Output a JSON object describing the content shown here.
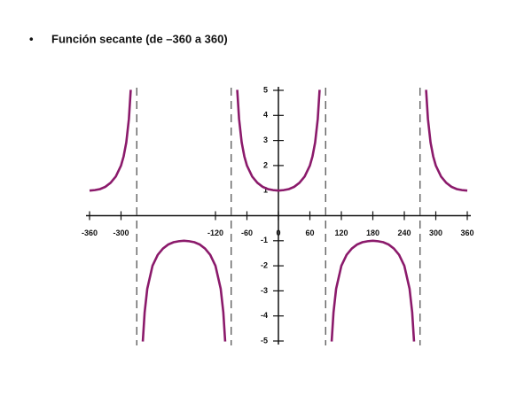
{
  "chart_data": {
    "type": "line",
    "title": "Función secante (de –360 a 360)",
    "color": "#8b1a6b",
    "x": [
      -360,
      -350,
      -340,
      -330,
      -320,
      -310,
      -300,
      -295,
      -290,
      -285,
      -281.5,
      -270,
      -258.5,
      -255,
      -250,
      -240,
      -230,
      -220,
      -210,
      -200,
      -190,
      -180,
      -170,
      -160,
      -150,
      -140,
      -130,
      -120,
      -110,
      -105,
      -101.5,
      -90,
      -78.5,
      -75,
      -70,
      -65,
      -60,
      -50,
      -40,
      -30,
      -20,
      -10,
      0,
      10,
      20,
      30,
      40,
      50,
      60,
      65,
      70,
      75,
      78.5,
      90,
      101.5,
      105,
      110,
      120,
      130,
      140,
      150,
      160,
      170,
      180,
      190,
      200,
      210,
      220,
      230,
      240,
      250,
      255,
      258.5,
      270,
      281.5,
      285,
      290,
      295,
      300,
      310,
      320,
      330,
      340,
      350,
      360
    ],
    "values": [
      1,
      1.02,
      1.06,
      1.15,
      1.31,
      1.56,
      2,
      2.37,
      2.92,
      3.86,
      5.02,
      null,
      -5.02,
      -3.86,
      -2.92,
      -2,
      -1.56,
      -1.31,
      -1.15,
      -1.06,
      -1.02,
      -1,
      -1.02,
      -1.06,
      -1.15,
      -1.31,
      -1.56,
      -2,
      -2.92,
      -3.86,
      -5.02,
      null,
      5.02,
      3.86,
      2.92,
      2.37,
      2,
      1.56,
      1.31,
      1.15,
      1.06,
      1.02,
      1,
      1.02,
      1.06,
      1.15,
      1.31,
      1.56,
      2,
      2.37,
      2.92,
      3.86,
      5.02,
      null,
      -5.02,
      -3.86,
      -2.92,
      -2,
      -1.56,
      -1.31,
      -1.15,
      -1.06,
      -1.02,
      -1,
      -1.02,
      -1.06,
      -1.15,
      -1.31,
      -1.56,
      -2,
      -2.92,
      -3.86,
      -5.02,
      null,
      5.02,
      3.86,
      2.92,
      2.37,
      2,
      1.56,
      1.31,
      1.15,
      1.06,
      1.02,
      1
    ],
    "asymptotes": [
      -270,
      -90,
      90,
      270
    ],
    "xlim": [
      -360,
      360
    ],
    "ylim": [
      -5,
      5
    ],
    "xticks": [
      -360,
      -300,
      -120,
      -60,
      0,
      60,
      120,
      180,
      240,
      300,
      360
    ],
    "yticks": [
      -5,
      -4,
      -3,
      -2,
      -1,
      1,
      2,
      3,
      4,
      5
    ]
  }
}
